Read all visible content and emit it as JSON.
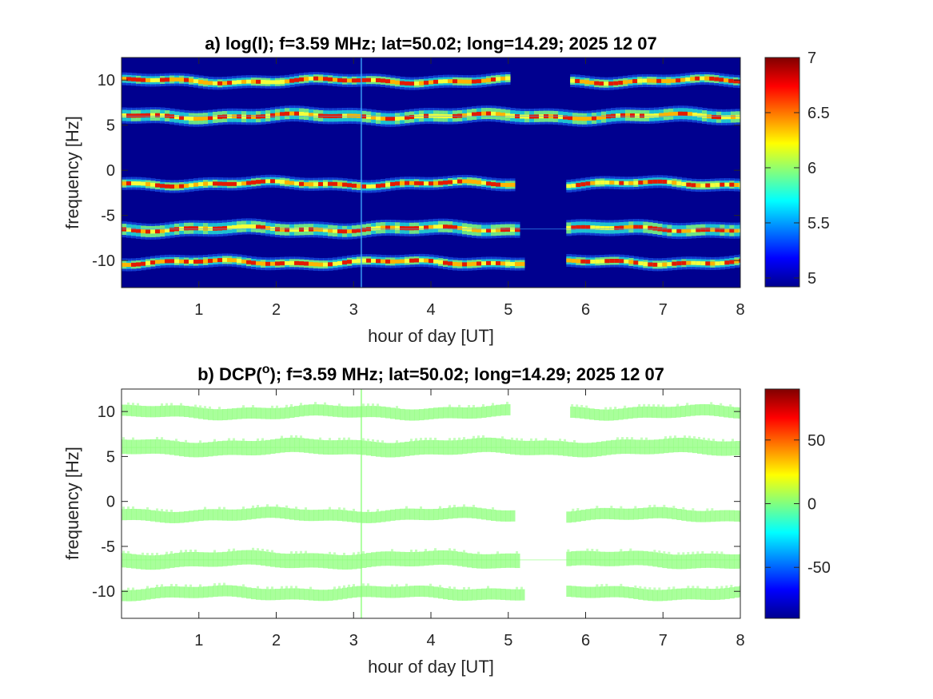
{
  "chart_data": [
    {
      "type": "heatmap",
      "panel": "a",
      "title": "a) log(I); f=3.59 MHz;  lat=50.02; long=14.29; 2025 12 07",
      "xlabel": "hour of day [UT]",
      "ylabel": "frequency [Hz]",
      "xlim": [
        0,
        8
      ],
      "ylim": [
        -13,
        12.5
      ],
      "xticks": [
        1,
        2,
        3,
        4,
        5,
        6,
        7,
        8
      ],
      "yticks": [
        10,
        5,
        0,
        -5,
        -10
      ],
      "colormap": "jet",
      "background_color": "#00008f",
      "colorbar": {
        "clim": [
          4.92,
          7.0
        ],
        "ticks": [
          7,
          6.5,
          6,
          5.5,
          5
        ],
        "labels": [
          "7",
          "6.5",
          "6",
          "5.5",
          "5"
        ]
      },
      "bands": [
        {
          "center_hz": 9.9,
          "segments": [
            [
              0.0,
              5.0
            ],
            [
              5.8,
              8.0
            ]
          ],
          "peak_level": 6.3
        },
        {
          "center_hz": 6.0,
          "segments": [
            [
              0.0,
              8.0
            ]
          ],
          "peak_level": 6.9
        },
        {
          "center_hz": -1.5,
          "segments": [
            [
              0.0,
              5.05
            ],
            [
              5.75,
              8.0
            ]
          ],
          "peak_level": 6.8
        },
        {
          "center_hz": -6.5,
          "segments": [
            [
              0.0,
              5.1
            ],
            [
              5.75,
              8.0
            ]
          ],
          "peak_level": 7.0
        },
        {
          "center_hz": -10.2,
          "segments": [
            [
              0.0,
              5.15
            ],
            [
              5.75,
              8.0
            ]
          ],
          "peak_level": 6.9
        }
      ],
      "data_gap_ut": [
        5.15,
        5.75
      ],
      "vertical_line_ut": 3.1
    },
    {
      "type": "heatmap",
      "panel": "b",
      "title_prefix": "b) DCP(",
      "title_superscript": "o",
      "title_suffix": ");  f=3.59 MHz;  lat=50.02; long=14.29; 2025 12 07",
      "xlabel": "hour of day [UT]",
      "ylabel": "frequency [Hz]",
      "xlim": [
        0,
        8
      ],
      "ylim": [
        -13,
        12.5
      ],
      "xticks": [
        1,
        2,
        3,
        4,
        5,
        6,
        7,
        8
      ],
      "yticks": [
        10,
        5,
        0,
        -5,
        -10
      ],
      "colormap": "jet",
      "background_color": "#ffffff",
      "band_color": "#8cff7a",
      "dominant_value": 0,
      "colorbar": {
        "clim": [
          -90,
          90
        ],
        "ticks": [
          50,
          0,
          -50
        ],
        "labels": [
          "50",
          "0",
          "-50"
        ]
      },
      "bands": [
        {
          "center_hz": 9.9,
          "segments": [
            [
              0.0,
              5.0
            ],
            [
              5.8,
              8.0
            ]
          ]
        },
        {
          "center_hz": 6.0,
          "segments": [
            [
              0.0,
              8.0
            ]
          ]
        },
        {
          "center_hz": -1.5,
          "segments": [
            [
              0.0,
              5.05
            ],
            [
              5.75,
              8.0
            ]
          ]
        },
        {
          "center_hz": -6.5,
          "segments": [
            [
              0.0,
              5.1
            ],
            [
              5.75,
              8.0
            ]
          ]
        },
        {
          "center_hz": -10.2,
          "segments": [
            [
              0.0,
              5.15
            ],
            [
              5.75,
              8.0
            ]
          ]
        }
      ],
      "vertical_line_ut": 3.1
    }
  ]
}
